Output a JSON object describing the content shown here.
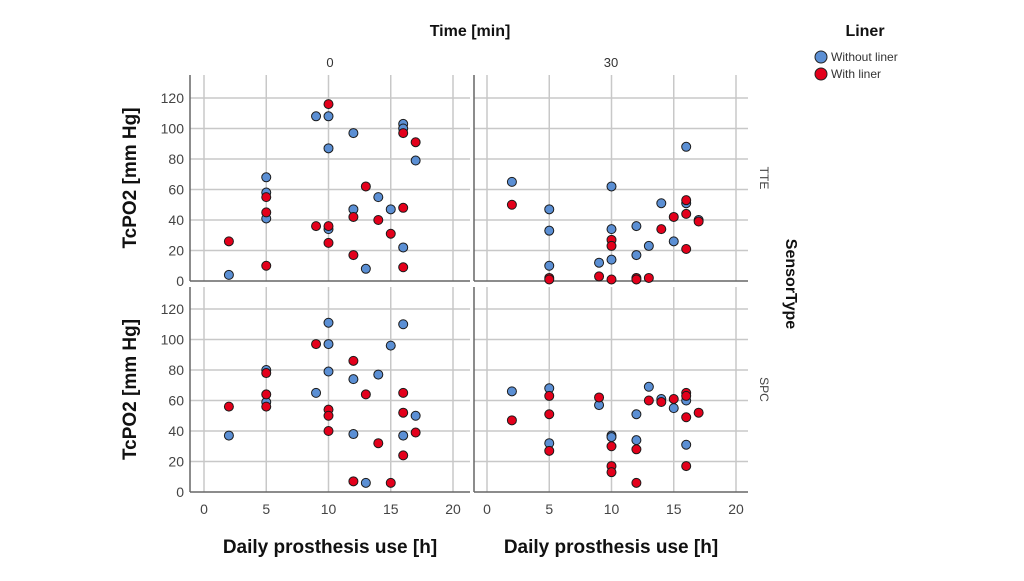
{
  "chart_data": {
    "type": "scatter",
    "title": "Time [min]",
    "xlabel": "Daily prosthesis use [h]",
    "ylabel": "TcPO2 [mm Hg]",
    "row_title": "SensorType",
    "columns": [
      "0",
      "30"
    ],
    "rows": [
      "TTE",
      "SPC"
    ],
    "xlim": [
      -1,
      21
    ],
    "ylim": [
      0,
      130
    ],
    "xticks": [
      "0",
      "5",
      "10",
      "15",
      "20"
    ],
    "yticks": [
      "0",
      "20",
      "40",
      "60",
      "80",
      "100",
      "120"
    ],
    "xtick_values": [
      0,
      5,
      10,
      15,
      20
    ],
    "ytick_values": [
      0,
      20,
      40,
      60,
      80,
      100,
      120
    ],
    "grid": true,
    "legend": {
      "title": "Liner",
      "position": "top-right",
      "entries": [
        {
          "label": "Without liner",
          "color": "#5b8fd4"
        },
        {
          "label": "With liner",
          "color": "#e3001b"
        }
      ]
    },
    "panels": [
      {
        "row": "TTE",
        "column": "0",
        "series": [
          {
            "name": "Without liner",
            "points": [
              [
                2,
                4
              ],
              [
                5,
                68
              ],
              [
                5,
                58
              ],
              [
                5,
                41
              ],
              [
                9,
                108
              ],
              [
                10,
                108
              ],
              [
                10,
                87
              ],
              [
                10,
                34
              ],
              [
                12,
                97
              ],
              [
                12,
                47
              ],
              [
                13,
                8
              ],
              [
                14,
                55
              ],
              [
                15,
                47
              ],
              [
                16,
                103
              ],
              [
                16,
                100
              ],
              [
                16,
                22
              ],
              [
                17,
                79
              ]
            ]
          },
          {
            "name": "With liner",
            "points": [
              [
                2,
                26
              ],
              [
                5,
                55
              ],
              [
                5,
                45
              ],
              [
                5,
                10
              ],
              [
                9,
                36
              ],
              [
                10,
                116
              ],
              [
                10,
                36
              ],
              [
                10,
                25
              ],
              [
                12,
                42
              ],
              [
                12,
                17
              ],
              [
                13,
                62
              ],
              [
                14,
                40
              ],
              [
                15,
                31
              ],
              [
                16,
                97
              ],
              [
                16,
                48
              ],
              [
                16,
                9
              ],
              [
                17,
                91
              ]
            ]
          }
        ]
      },
      {
        "row": "TTE",
        "column": "30",
        "series": [
          {
            "name": "Without liner",
            "points": [
              [
                2,
                65
              ],
              [
                5,
                47
              ],
              [
                5,
                33
              ],
              [
                5,
                10
              ],
              [
                9,
                12
              ],
              [
                10,
                62
              ],
              [
                10,
                34
              ],
              [
                10,
                14
              ],
              [
                12,
                36
              ],
              [
                12,
                17
              ],
              [
                13,
                23
              ],
              [
                14,
                51
              ],
              [
                15,
                26
              ],
              [
                16,
                88
              ],
              [
                16,
                51
              ],
              [
                17,
                40
              ]
            ]
          },
          {
            "name": "With liner",
            "points": [
              [
                2,
                50
              ],
              [
                5,
                2
              ],
              [
                5,
                1
              ],
              [
                9,
                3
              ],
              [
                10,
                27
              ],
              [
                10,
                23
              ],
              [
                10,
                1
              ],
              [
                12,
                2
              ],
              [
                12,
                1
              ],
              [
                13,
                2
              ],
              [
                14,
                34
              ],
              [
                15,
                42
              ],
              [
                16,
                53
              ],
              [
                16,
                44
              ],
              [
                16,
                21
              ],
              [
                17,
                39
              ]
            ]
          }
        ]
      },
      {
        "row": "SPC",
        "column": "0",
        "series": [
          {
            "name": "Without liner",
            "points": [
              [
                2,
                37
              ],
              [
                5,
                80
              ],
              [
                5,
                59
              ],
              [
                9,
                65
              ],
              [
                10,
                111
              ],
              [
                10,
                97
              ],
              [
                10,
                79
              ],
              [
                12,
                74
              ],
              [
                12,
                38
              ],
              [
                13,
                6
              ],
              [
                14,
                77
              ],
              [
                15,
                96
              ],
              [
                16,
                110
              ],
              [
                16,
                37
              ],
              [
                17,
                50
              ]
            ]
          },
          {
            "name": "With liner",
            "points": [
              [
                2,
                56
              ],
              [
                5,
                78
              ],
              [
                5,
                64
              ],
              [
                5,
                56
              ],
              [
                9,
                97
              ],
              [
                10,
                54
              ],
              [
                10,
                50
              ],
              [
                10,
                40
              ],
              [
                12,
                86
              ],
              [
                12,
                7
              ],
              [
                13,
                64
              ],
              [
                14,
                32
              ],
              [
                15,
                6
              ],
              [
                16,
                65
              ],
              [
                16,
                52
              ],
              [
                16,
                24
              ],
              [
                17,
                39
              ]
            ]
          }
        ]
      },
      {
        "row": "SPC",
        "column": "30",
        "series": [
          {
            "name": "Without liner",
            "points": [
              [
                2,
                66
              ],
              [
                5,
                68
              ],
              [
                5,
                32
              ],
              [
                9,
                57
              ],
              [
                10,
                37
              ],
              [
                10,
                36
              ],
              [
                12,
                51
              ],
              [
                12,
                34
              ],
              [
                13,
                69
              ],
              [
                14,
                61
              ],
              [
                15,
                55
              ],
              [
                16,
                60
              ],
              [
                16,
                31
              ]
            ]
          },
          {
            "name": "With liner",
            "points": [
              [
                2,
                47
              ],
              [
                5,
                63
              ],
              [
                5,
                51
              ],
              [
                5,
                27
              ],
              [
                9,
                62
              ],
              [
                10,
                30
              ],
              [
                10,
                17
              ],
              [
                10,
                13
              ],
              [
                12,
                28
              ],
              [
                12,
                6
              ],
              [
                13,
                60
              ],
              [
                14,
                59
              ],
              [
                15,
                61
              ],
              [
                16,
                65
              ],
              [
                16,
                63
              ],
              [
                16,
                49
              ],
              [
                16,
                17
              ],
              [
                17,
                52
              ]
            ]
          }
        ]
      }
    ]
  }
}
